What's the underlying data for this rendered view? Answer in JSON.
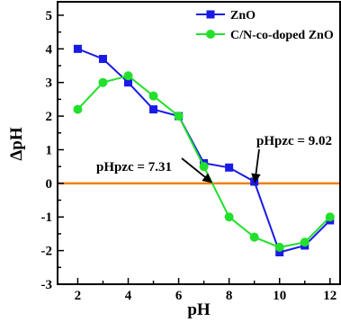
{
  "chart_data": {
    "type": "line",
    "xlabel": "pH",
    "ylabel": "ΔpH",
    "xlim": [
      1.2,
      12.4
    ],
    "ylim": [
      -3,
      5.4
    ],
    "x_ticks": [
      2,
      4,
      6,
      8,
      10,
      12
    ],
    "y_ticks": [
      -3,
      -2,
      -1,
      0,
      1,
      2,
      3,
      4,
      5
    ],
    "legend_position": "top-right",
    "grid": false,
    "reference_line": {
      "y": 0,
      "color": "#F07F13"
    },
    "series": [
      {
        "name": "ZnO",
        "color": "#1A1AE6",
        "marker": "square",
        "x": [
          2,
          3,
          4,
          5,
          6,
          7,
          8,
          9,
          10,
          11,
          12
        ],
        "y": [
          4.0,
          3.7,
          3.0,
          2.2,
          2.0,
          0.6,
          0.47,
          0.05,
          -2.05,
          -1.85,
          -1.1
        ]
      },
      {
        "name": "C/N-co-doped ZnO",
        "color": "#22E02B",
        "marker": "circle",
        "x": [
          2,
          3,
          4,
          5,
          6,
          7,
          8,
          9,
          10,
          11,
          12
        ],
        "y": [
          2.2,
          3.0,
          3.2,
          2.6,
          2.0,
          0.5,
          -1.0,
          -1.6,
          -1.9,
          -1.75,
          -1.0
        ]
      }
    ],
    "annotations": [
      {
        "text": "pHpzc = 9.02",
        "x": 9.02,
        "y": 0
      },
      {
        "text": "pHpzc = 7.31",
        "x": 7.31,
        "y": 0
      }
    ]
  }
}
